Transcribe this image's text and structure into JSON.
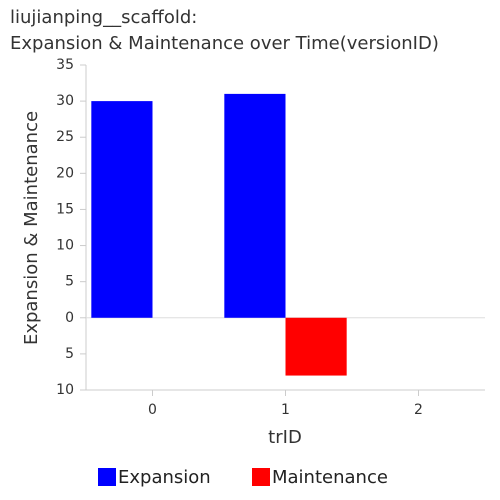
{
  "chart_data": {
    "type": "bar",
    "title": [
      "liujianping__scaffold:",
      "Expansion & Maintenance over Time(versionID)"
    ],
    "x_label": "trID",
    "y_label": "Expansion & Maintenance",
    "categories": [
      "0",
      "1",
      "2"
    ],
    "series": [
      {
        "name": "Expansion",
        "color": "#0000ff",
        "values": [
          30,
          31,
          0
        ]
      },
      {
        "name": "Maintenance",
        "color": "#ff0000",
        "values": [
          0,
          -8,
          0
        ]
      }
    ],
    "ylim": [
      -10,
      35
    ],
    "yticks": [
      {
        "value": -10,
        "label": "10"
      },
      {
        "value": -5,
        "label": "5"
      },
      0,
      5,
      10,
      15,
      20,
      25,
      30,
      35
    ]
  }
}
